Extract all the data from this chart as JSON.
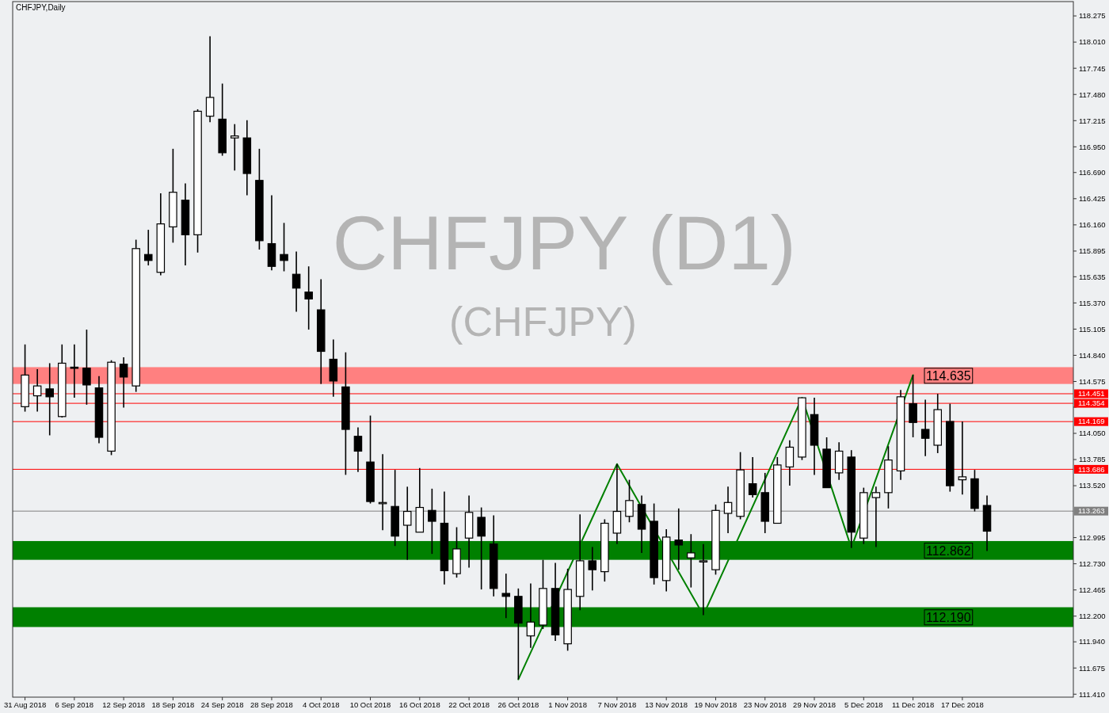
{
  "chart_data": {
    "type": "candlestick",
    "title": "CHFJPY,Daily",
    "annotations": [
      "CHFJPY (D1)",
      "(CHFJPY)"
    ],
    "categories": [
      "31 Aug 2018",
      null,
      null,
      null,
      "6 Sep 2018",
      null,
      null,
      null,
      "12 Sep 2018",
      null,
      null,
      null,
      "18 Sep 2018",
      null,
      null,
      null,
      "24 Sep 2018",
      null,
      null,
      null,
      "28 Sep 2018",
      null,
      null,
      null,
      "4 Oct 2018",
      null,
      null,
      null,
      "10 Oct 2018",
      null,
      null,
      null,
      "16 Oct 2018",
      null,
      null,
      null,
      "22 Oct 2018",
      null,
      null,
      null,
      "26 Oct 2018",
      null,
      null,
      null,
      "1 Nov 2018",
      null,
      null,
      null,
      "7 Nov 2018",
      null,
      null,
      null,
      "13 Nov 2018",
      null,
      null,
      null,
      "19 Nov 2018",
      null,
      null,
      null,
      "23 Nov 2018",
      null,
      null,
      null,
      "29 Nov 2018",
      null,
      null,
      null,
      "5 Dec 2018",
      null,
      null,
      null,
      "11 Dec 2018",
      null,
      null,
      null,
      "17 Dec 2018",
      null,
      null,
      null,
      null,
      null,
      null,
      null,
      null
    ],
    "ohlc": [
      [
        114.32,
        114.95,
        114.27,
        114.64
      ],
      [
        114.43,
        114.7,
        114.27,
        114.53
      ],
      [
        114.5,
        114.76,
        114.03,
        114.42
      ],
      [
        114.22,
        114.95,
        114.21,
        114.76
      ],
      [
        114.72,
        114.95,
        114.41,
        114.71
      ],
      [
        114.71,
        115.1,
        114.34,
        114.54
      ],
      [
        114.51,
        114.63,
        113.95,
        114.01
      ],
      [
        113.87,
        114.79,
        113.83,
        114.77
      ],
      [
        114.75,
        114.82,
        114.31,
        114.62
      ],
      [
        114.53,
        116.01,
        114.47,
        115.92
      ],
      [
        115.86,
        116.11,
        115.75,
        115.8
      ],
      [
        115.68,
        116.48,
        115.65,
        116.17
      ],
      [
        116.14,
        116.93,
        115.98,
        116.49
      ],
      [
        116.41,
        116.58,
        115.75,
        116.06
      ],
      [
        116.06,
        117.33,
        115.88,
        117.31
      ],
      [
        117.26,
        118.07,
        117.2,
        117.45
      ],
      [
        117.23,
        117.59,
        116.86,
        116.89
      ],
      [
        117.04,
        117.18,
        116.71,
        117.06
      ],
      [
        117.04,
        117.22,
        116.46,
        116.68
      ],
      [
        116.61,
        116.93,
        115.91,
        116.0
      ],
      [
        115.97,
        116.46,
        115.7,
        115.74
      ],
      [
        115.86,
        116.18,
        115.69,
        115.8
      ],
      [
        115.66,
        115.89,
        115.28,
        115.52
      ],
      [
        115.48,
        115.74,
        115.1,
        115.41
      ],
      [
        115.3,
        115.61,
        114.55,
        114.88
      ],
      [
        114.8,
        115.0,
        114.42,
        114.58
      ],
      [
        114.52,
        114.87,
        113.63,
        114.09
      ],
      [
        114.02,
        114.11,
        113.66,
        113.87
      ],
      [
        113.76,
        114.23,
        113.34,
        113.36
      ],
      [
        113.35,
        113.84,
        113.07,
        113.35
      ],
      [
        113.31,
        113.68,
        112.91,
        113.01
      ],
      [
        113.12,
        113.51,
        112.77,
        113.26
      ],
      [
        113.05,
        113.7,
        113.05,
        113.3
      ],
      [
        113.27,
        113.49,
        112.83,
        113.16
      ],
      [
        113.14,
        113.46,
        112.52,
        112.66
      ],
      [
        112.63,
        113.1,
        112.59,
        112.88
      ],
      [
        112.99,
        113.42,
        112.69,
        113.25
      ],
      [
        113.2,
        113.3,
        112.47,
        113.01
      ],
      [
        112.93,
        113.22,
        112.4,
        112.48
      ],
      [
        112.43,
        112.63,
        112.18,
        112.4
      ],
      [
        112.4,
        112.48,
        111.56,
        112.13
      ],
      [
        112.0,
        112.53,
        111.88,
        112.14
      ],
      [
        112.11,
        112.77,
        112.07,
        112.48
      ],
      [
        112.48,
        112.74,
        111.95,
        112.01
      ],
      [
        111.92,
        112.68,
        111.85,
        112.47
      ],
      [
        112.4,
        113.23,
        112.26,
        112.76
      ],
      [
        112.76,
        112.9,
        112.46,
        112.67
      ],
      [
        112.65,
        113.18,
        112.55,
        113.14
      ],
      [
        113.04,
        113.74,
        112.93,
        113.26
      ],
      [
        113.21,
        113.58,
        113.15,
        113.37
      ],
      [
        113.33,
        113.42,
        112.84,
        113.08
      ],
      [
        113.16,
        113.34,
        112.52,
        112.59
      ],
      [
        112.56,
        113.08,
        112.45,
        113.0
      ],
      [
        112.97,
        113.29,
        112.67,
        112.92
      ],
      [
        112.79,
        113.03,
        112.49,
        112.84
      ],
      [
        112.76,
        112.93,
        112.21,
        112.76
      ],
      [
        112.67,
        113.33,
        112.62,
        113.27
      ],
      [
        113.24,
        113.51,
        113.04,
        113.35
      ],
      [
        113.21,
        113.86,
        113.18,
        113.68
      ],
      [
        113.54,
        113.81,
        113.4,
        113.43
      ],
      [
        113.45,
        113.65,
        113.04,
        113.16
      ],
      [
        113.14,
        113.81,
        113.14,
        113.73
      ],
      [
        113.71,
        113.98,
        113.52,
        113.91
      ],
      [
        113.81,
        114.41,
        113.78,
        114.41
      ],
      [
        114.24,
        114.41,
        113.63,
        113.93
      ],
      [
        113.89,
        114.01,
        113.5,
        113.5
      ],
      [
        113.65,
        113.96,
        113.58,
        113.87
      ],
      [
        113.81,
        113.88,
        112.89,
        113.05
      ],
      [
        112.99,
        113.5,
        112.93,
        113.45
      ],
      [
        113.4,
        113.51,
        112.9,
        113.45
      ],
      [
        113.45,
        113.92,
        113.29,
        113.78
      ],
      [
        113.67,
        114.49,
        113.58,
        114.42
      ],
      [
        114.35,
        114.64,
        114.01,
        114.16
      ],
      [
        114.09,
        114.39,
        113.82,
        114.0
      ],
      [
        113.93,
        114.45,
        113.85,
        114.29
      ],
      [
        114.17,
        114.35,
        113.46,
        113.52
      ],
      [
        113.58,
        114.17,
        113.43,
        113.61
      ],
      [
        113.59,
        113.68,
        113.26,
        113.29
      ],
      [
        113.32,
        113.42,
        112.86,
        113.06
      ],
      null,
      null,
      null,
      null,
      null,
      null
    ],
    "series": [
      {
        "type": "line",
        "color": "#008000",
        "values": [
          null,
          null,
          null,
          null,
          null,
          null,
          null,
          null,
          null,
          null,
          null,
          null,
          null,
          null,
          null,
          null,
          null,
          null,
          null,
          null,
          null,
          null,
          null,
          null,
          null,
          null,
          null,
          null,
          null,
          null,
          null,
          null,
          null,
          null,
          null,
          null,
          null,
          null,
          null,
          null,
          111.56,
          null,
          null,
          null,
          null,
          null,
          null,
          null,
          113.74,
          null,
          null,
          null,
          null,
          null,
          null,
          112.21,
          null,
          null,
          null,
          null,
          null,
          null,
          null,
          114.41,
          null,
          null,
          null,
          112.89,
          null,
          null,
          null,
          null,
          114.64,
          null,
          null,
          null,
          null,
          null,
          null,
          null,
          null,
          null,
          null,
          null,
          null
        ]
      }
    ],
    "bands": [
      {
        "axis": "y",
        "from": 114.55,
        "to": 114.72,
        "label": "114.635",
        "color": "#ff8080"
      },
      {
        "axis": "y",
        "from": 112.77,
        "to": 112.96,
        "label": "112.862",
        "color": "#008000"
      },
      {
        "axis": "y",
        "from": 112.09,
        "to": 112.29,
        "label": "112.190",
        "color": "#008000"
      }
    ],
    "ref_lines": [
      {
        "axis": "y",
        "value": 114.451,
        "label": "114.451",
        "color": "#ff0000"
      },
      {
        "axis": "y",
        "value": 114.354,
        "label": "114.354",
        "color": "#ff0000"
      },
      {
        "axis": "y",
        "value": 114.169,
        "label": "114.169",
        "color": "#ff0000"
      },
      {
        "axis": "y",
        "value": 113.686,
        "label": "113.686",
        "color": "#ff0000"
      },
      {
        "axis": "y",
        "value": 113.263,
        "label": "113.263",
        "color": "#808080"
      }
    ],
    "ylim": [
      111.38,
      118.42
    ],
    "yticks": [
      {
        "value": 118.275,
        "label": "118.275"
      },
      {
        "value": 118.01,
        "label": "118.010"
      },
      {
        "value": 117.745,
        "label": "117.745"
      },
      {
        "value": 117.48,
        "label": "117.480"
      },
      {
        "value": 117.215,
        "label": "117.215"
      },
      {
        "value": 116.95,
        "label": "116.950"
      },
      {
        "value": 116.69,
        "label": "116.690"
      },
      {
        "value": 116.425,
        "label": "116.425"
      },
      {
        "value": 116.16,
        "label": "116.160"
      },
      {
        "value": 115.895,
        "label": "115.895"
      },
      {
        "value": 115.635,
        "label": "115.635"
      },
      {
        "value": 115.37,
        "label": "115.370"
      },
      {
        "value": 115.105,
        "label": "115.105"
      },
      {
        "value": 114.84,
        "label": "114.840"
      },
      {
        "value": 114.575,
        "label": "114.575"
      },
      {
        "value": 114.315,
        "label": null
      },
      {
        "value": 114.05,
        "label": "114.050"
      },
      {
        "value": 113.785,
        "label": "113.785"
      },
      {
        "value": 113.52,
        "label": "113.520"
      },
      {
        "value": 112.995,
        "label": "112.995"
      },
      {
        "value": 112.73,
        "label": "112.730"
      },
      {
        "value": 112.465,
        "label": "112.465"
      },
      {
        "value": 112.2,
        "label": "112.200"
      },
      {
        "value": 111.94,
        "label": "111.940"
      },
      {
        "value": 111.675,
        "label": "111.675"
      },
      {
        "value": 111.41,
        "label": "111.410"
      }
    ]
  }
}
